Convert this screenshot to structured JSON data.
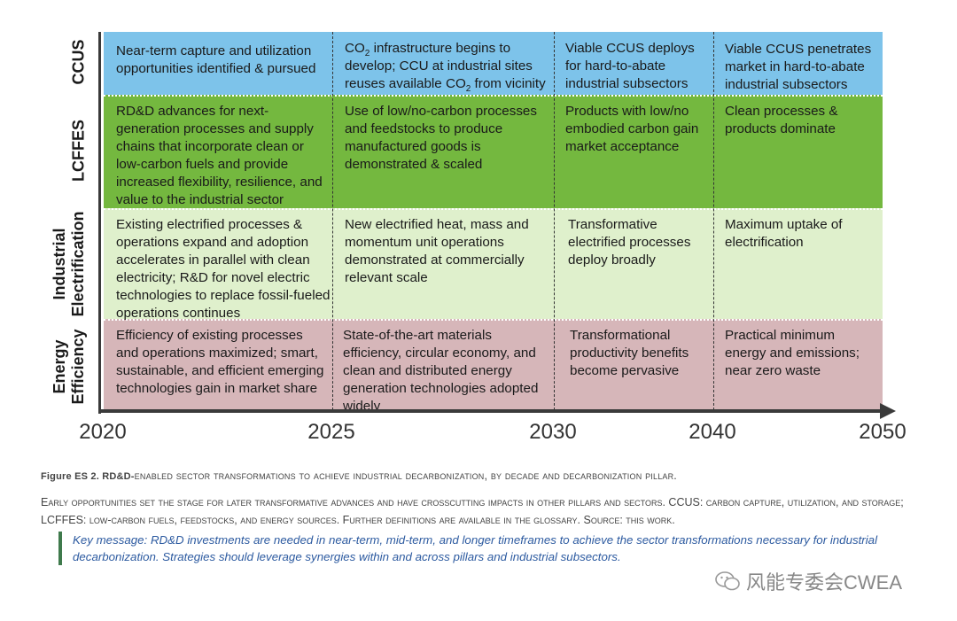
{
  "rows": {
    "ccus": {
      "label": "CCUS",
      "cells": [
        "Near-term capture and utilization opportunities identified & pursued",
        "",
        "Viable CCUS deploys for hard-to-abate industrial subsectors",
        "Viable CCUS penetrates market in hard-to-abate industrial subsectors"
      ],
      "co2_cell": {
        "t1": "CO",
        "s1": "2",
        "t2": " infrastructure begins to develop; CCU at industrial sites reuses available CO",
        "s2": "2",
        "t3": " from vicinity"
      }
    },
    "lcffes": {
      "label": "LCFFES",
      "cells": [
        "RD&D advances for next-generation processes and supply chains that incorporate clean or low-carbon fuels and provide increased flexibility, resilience, and value to the industrial sector",
        "Use of low/no-carbon processes and feedstocks to produce manufactured goods is demonstrated & scaled",
        "Products with low/no embodied carbon gain market acceptance",
        "Clean processes & products dominate"
      ]
    },
    "elec": {
      "label_line1": "Industrial",
      "label_line2": "Electrification",
      "cells": [
        "Existing electrified processes & operations expand and adoption accelerates in parallel with clean electricity; R&D for novel electric technologies to replace fossil-fueled operations continues",
        "New electrified heat, mass and momentum unit operations demonstrated at commercially relevant scale",
        "Transformative electrified processes deploy broadly",
        "Maximum uptake of electrification"
      ]
    },
    "eff": {
      "label_line1": "Energy",
      "label_line2": "Efficiency",
      "cells": [
        "Efficiency of existing processes and operations maximized; smart, sustainable, and efficient emerging technologies gain in market share",
        "State-of-the-art materials efficiency, circular economy, and clean and distributed energy generation technologies adopted widely",
        "Transformational productivity benefits become pervasive",
        "Practical minimum energy and emissions; near zero waste"
      ]
    }
  },
  "years": [
    "2020",
    "2025",
    "2030",
    "2040",
    "2050"
  ],
  "caption": {
    "lead": "Figure ES 2. RD&D-",
    "rest": "enabled sector transformations to achieve industrial decarbonization, by decade and decarbonization pillar."
  },
  "description": "Early opportunities set the stage for later transformative advances and have crosscutting impacts in other pillars and sectors. CCUS: carbon capture, utilization, and storage; LCFFES: low-carbon fuels, feedstocks, and energy sources. Further definitions are available in the glossary. Source: this work.",
  "key_message": "Key message: RD&D investments are needed in near-term, mid-term, and longer timeframes to achieve the sector transformations necessary for industrial decarbonization. Strategies should leverage synergies within and across pillars and industrial subsectors.",
  "watermark": "风能专委会CWEA",
  "colors": {
    "ccus": "#7dc3ea",
    "lcffes": "#74b83f",
    "elec": "#dff0cc",
    "eff": "#d6b6b9",
    "key_text": "#2c5aa0",
    "key_bar": "#3f7a4c"
  }
}
